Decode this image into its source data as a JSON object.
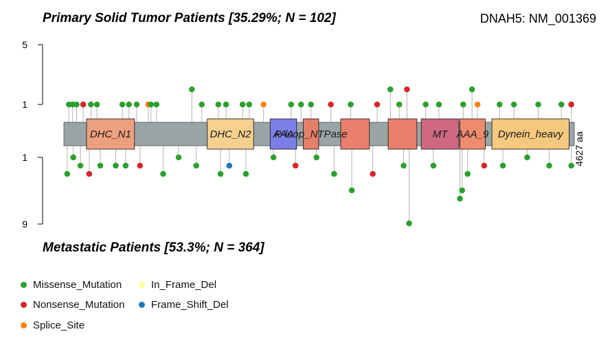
{
  "header": {
    "top_title": "Primary Solid Tumor Patients [35.29%; N = 102]",
    "gene_label": "DNAH5: NM_001369",
    "bottom_title": "Metastatic Patients [53.3%; N = 364]"
  },
  "chart_data": {
    "type": "lollipop",
    "protein_length": 4627,
    "protein_length_label": "4627 aa",
    "y_ticks_top": [
      "5",
      "1"
    ],
    "y_ticks_bottom": [
      "1",
      "9"
    ],
    "domains": [
      {
        "name": "DHC_N1",
        "start": 205,
        "end": 640,
        "color": "#EDA07E"
      },
      {
        "name": "DHC_N2",
        "start": 1300,
        "end": 1720,
        "color": "#F5D08F"
      },
      {
        "name": "AAA",
        "start": 1870,
        "end": 2110,
        "color": "#7C7FE6"
      },
      {
        "name": "P-loop_NTPase",
        "start": 2170,
        "end": 2310,
        "color": "#E47F6A"
      },
      {
        "name": "",
        "start": 2510,
        "end": 2770,
        "color": "#E8806C"
      },
      {
        "name": "",
        "start": 2940,
        "end": 3200,
        "color": "#E8806C"
      },
      {
        "name": "MT",
        "start": 3240,
        "end": 3580,
        "color": "#CF6882"
      },
      {
        "name": "AAA_9",
        "start": 3590,
        "end": 3820,
        "color": "#EF8C6E"
      },
      {
        "name": "Dynein_heavy",
        "start": 3880,
        "end": 4580,
        "color": "#F4C87E"
      }
    ],
    "mutation_colors": {
      "Missense_Mutation": "#2CA02C",
      "Nonsense_Mutation": "#D62728",
      "Splice_Site": "#FF7F0E",
      "In_Frame_Del": "#FFFF99",
      "Frame_Shift_Del": "#1F78B4"
    },
    "primary_mutations": [
      {
        "pos": 45,
        "count": 1,
        "type": "Missense_Mutation"
      },
      {
        "pos": 80,
        "count": 1,
        "type": "Missense_Mutation"
      },
      {
        "pos": 115,
        "count": 1,
        "type": "Missense_Mutation"
      },
      {
        "pos": 175,
        "count": 1,
        "type": "Nonsense_Mutation"
      },
      {
        "pos": 245,
        "count": 1,
        "type": "Missense_Mutation"
      },
      {
        "pos": 300,
        "count": 1,
        "type": "Missense_Mutation"
      },
      {
        "pos": 530,
        "count": 1,
        "type": "Missense_Mutation"
      },
      {
        "pos": 590,
        "count": 1,
        "type": "Missense_Mutation"
      },
      {
        "pos": 660,
        "count": 1,
        "type": "Missense_Mutation"
      },
      {
        "pos": 765,
        "count": 1,
        "type": "Splice_Site"
      },
      {
        "pos": 790,
        "count": 1,
        "type": "Missense_Mutation"
      },
      {
        "pos": 840,
        "count": 1,
        "type": "Missense_Mutation"
      },
      {
        "pos": 1160,
        "count": 2,
        "type": "Missense_Mutation"
      },
      {
        "pos": 1250,
        "count": 1,
        "type": "Missense_Mutation"
      },
      {
        "pos": 1400,
        "count": 1,
        "type": "Missense_Mutation"
      },
      {
        "pos": 1470,
        "count": 1,
        "type": "Missense_Mutation"
      },
      {
        "pos": 1620,
        "count": 1,
        "type": "Missense_Mutation"
      },
      {
        "pos": 1680,
        "count": 1,
        "type": "Missense_Mutation"
      },
      {
        "pos": 1810,
        "count": 1,
        "type": "Splice_Site"
      },
      {
        "pos": 2060,
        "count": 1,
        "type": "Missense_Mutation"
      },
      {
        "pos": 2150,
        "count": 1,
        "type": "Missense_Mutation"
      },
      {
        "pos": 2240,
        "count": 1,
        "type": "Missense_Mutation"
      },
      {
        "pos": 2420,
        "count": 1,
        "type": "Nonsense_Mutation"
      },
      {
        "pos": 2600,
        "count": 1,
        "type": "Missense_Mutation"
      },
      {
        "pos": 2840,
        "count": 1,
        "type": "Nonsense_Mutation"
      },
      {
        "pos": 2960,
        "count": 2,
        "type": "Missense_Mutation"
      },
      {
        "pos": 3040,
        "count": 1,
        "type": "Missense_Mutation"
      },
      {
        "pos": 3110,
        "count": 2,
        "type": "Nonsense_Mutation"
      },
      {
        "pos": 3280,
        "count": 1,
        "type": "Missense_Mutation"
      },
      {
        "pos": 3400,
        "count": 1,
        "type": "Missense_Mutation"
      },
      {
        "pos": 3620,
        "count": 1,
        "type": "Missense_Mutation"
      },
      {
        "pos": 3700,
        "count": 2,
        "type": "Missense_Mutation"
      },
      {
        "pos": 3750,
        "count": 1,
        "type": "Splice_Site"
      },
      {
        "pos": 3950,
        "count": 1,
        "type": "Missense_Mutation"
      },
      {
        "pos": 4080,
        "count": 1,
        "type": "Missense_Mutation"
      },
      {
        "pos": 4300,
        "count": 1,
        "type": "Missense_Mutation"
      },
      {
        "pos": 4510,
        "count": 1,
        "type": "Missense_Mutation"
      },
      {
        "pos": 4600,
        "count": 1,
        "type": "Nonsense_Mutation"
      }
    ],
    "metastatic_mutations": [
      {
        "pos": 30,
        "count": 3,
        "type": "Missense_Mutation"
      },
      {
        "pos": 85,
        "count": 1,
        "type": "Missense_Mutation"
      },
      {
        "pos": 150,
        "count": 2,
        "type": "Missense_Mutation"
      },
      {
        "pos": 230,
        "count": 3,
        "type": "Nonsense_Mutation"
      },
      {
        "pos": 330,
        "count": 2,
        "type": "Missense_Mutation"
      },
      {
        "pos": 470,
        "count": 2,
        "type": "Missense_Mutation"
      },
      {
        "pos": 560,
        "count": 2,
        "type": "Missense_Mutation"
      },
      {
        "pos": 690,
        "count": 2,
        "type": "Nonsense_Mutation"
      },
      {
        "pos": 900,
        "count": 3,
        "type": "Missense_Mutation"
      },
      {
        "pos": 1040,
        "count": 1,
        "type": "Missense_Mutation"
      },
      {
        "pos": 1200,
        "count": 2,
        "type": "Missense_Mutation"
      },
      {
        "pos": 1420,
        "count": 3,
        "type": "Missense_Mutation"
      },
      {
        "pos": 1500,
        "count": 2,
        "type": "Frame_Shift_Del"
      },
      {
        "pos": 1650,
        "count": 3,
        "type": "Missense_Mutation"
      },
      {
        "pos": 1900,
        "count": 1,
        "type": "Missense_Mutation"
      },
      {
        "pos": 2100,
        "count": 2,
        "type": "Nonsense_Mutation"
      },
      {
        "pos": 2290,
        "count": 1,
        "type": "Missense_Mutation"
      },
      {
        "pos": 2450,
        "count": 3,
        "type": "Missense_Mutation"
      },
      {
        "pos": 2610,
        "count": 5,
        "type": "Missense_Mutation"
      },
      {
        "pos": 2800,
        "count": 3,
        "type": "Nonsense_Mutation"
      },
      {
        "pos": 3080,
        "count": 2,
        "type": "Missense_Mutation"
      },
      {
        "pos": 3130,
        "count": 9,
        "type": "Missense_Mutation"
      },
      {
        "pos": 3350,
        "count": 2,
        "type": "Missense_Mutation"
      },
      {
        "pos": 3590,
        "count": 6,
        "type": "Missense_Mutation"
      },
      {
        "pos": 3610,
        "count": 5,
        "type": "Missense_Mutation"
      },
      {
        "pos": 3660,
        "count": 3,
        "type": "Missense_Mutation"
      },
      {
        "pos": 3810,
        "count": 2,
        "type": "Nonsense_Mutation"
      },
      {
        "pos": 3980,
        "count": 2,
        "type": "Missense_Mutation"
      },
      {
        "pos": 4200,
        "count": 1,
        "type": "Missense_Mutation"
      },
      {
        "pos": 4400,
        "count": 2,
        "type": "Missense_Mutation"
      },
      {
        "pos": 4600,
        "count": 2,
        "type": "Missense_Mutation"
      }
    ]
  },
  "legend": {
    "items": [
      {
        "label": "Missense_Mutation",
        "color": "#2CA02C"
      },
      {
        "label": "In_Frame_Del",
        "color": "#FFFF99"
      },
      {
        "label": "Nonsense_Mutation",
        "color": "#D62728"
      },
      {
        "label": "Frame_Shift_Del",
        "color": "#1F78B4"
      },
      {
        "label": "Splice_Site",
        "color": "#FF7F0E"
      }
    ]
  }
}
